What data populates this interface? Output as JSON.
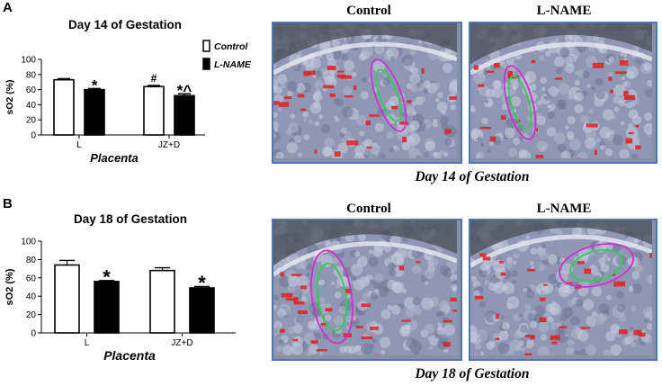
{
  "panels": [
    {
      "letter": "A",
      "title": "Day 14 of Gestation",
      "image_labels": [
        "Control",
        "L-NAME"
      ],
      "caption": "Day 14 of Gestation"
    },
    {
      "letter": "B",
      "title": "Day 18 of Gestation",
      "image_labels": [
        "Control",
        "L-NAME"
      ],
      "caption": "Day 18 of Gestation"
    }
  ],
  "colors": {
    "control_fill": "#ffffff",
    "lname_fill": "#000000",
    "frame_border": "#4a78b5",
    "outline_magenta": "#cc33cc",
    "outline_green": "#33cc55",
    "hotspot_red": "#e02020"
  },
  "chart_data": [
    {
      "type": "bar",
      "title": "Day 14 of Gestation",
      "categories": [
        "L",
        "JZ+D"
      ],
      "xlabel": "Placenta",
      "ylabel": "sO2 (%)",
      "ylim": [
        0,
        100
      ],
      "yticks": [
        "0",
        "20",
        "40",
        "60",
        "80",
        "100"
      ],
      "series": [
        {
          "name": "Control",
          "values": [
            73,
            64
          ],
          "errors": [
            1.5,
            1.5
          ]
        },
        {
          "name": "L-NAME",
          "values": [
            60,
            52
          ],
          "errors": [
            1.5,
            2.5
          ]
        }
      ],
      "annotations": [
        {
          "series": 1,
          "category": 0,
          "text": "*"
        },
        {
          "series": 0,
          "category": 1,
          "text": "#"
        },
        {
          "series": 1,
          "category": 1,
          "text": "*^"
        }
      ],
      "legend": "top-right"
    },
    {
      "type": "bar",
      "title": "Day 18 of Gestation",
      "categories": [
        "L",
        "JZ+D"
      ],
      "xlabel": "Placenta",
      "ylabel": "sO2 (%)",
      "ylim": [
        0,
        100
      ],
      "yticks": [
        "0",
        "20",
        "40",
        "60",
        "80",
        "100"
      ],
      "series": [
        {
          "name": "Control",
          "values": [
            74,
            68
          ],
          "errors": [
            5,
            3
          ]
        },
        {
          "name": "L-NAME",
          "values": [
            56,
            49
          ],
          "errors": [
            1,
            1.5
          ]
        }
      ],
      "annotations": [
        {
          "series": 1,
          "category": 0,
          "text": "*"
        },
        {
          "series": 1,
          "category": 1,
          "text": "*"
        }
      ]
    }
  ]
}
